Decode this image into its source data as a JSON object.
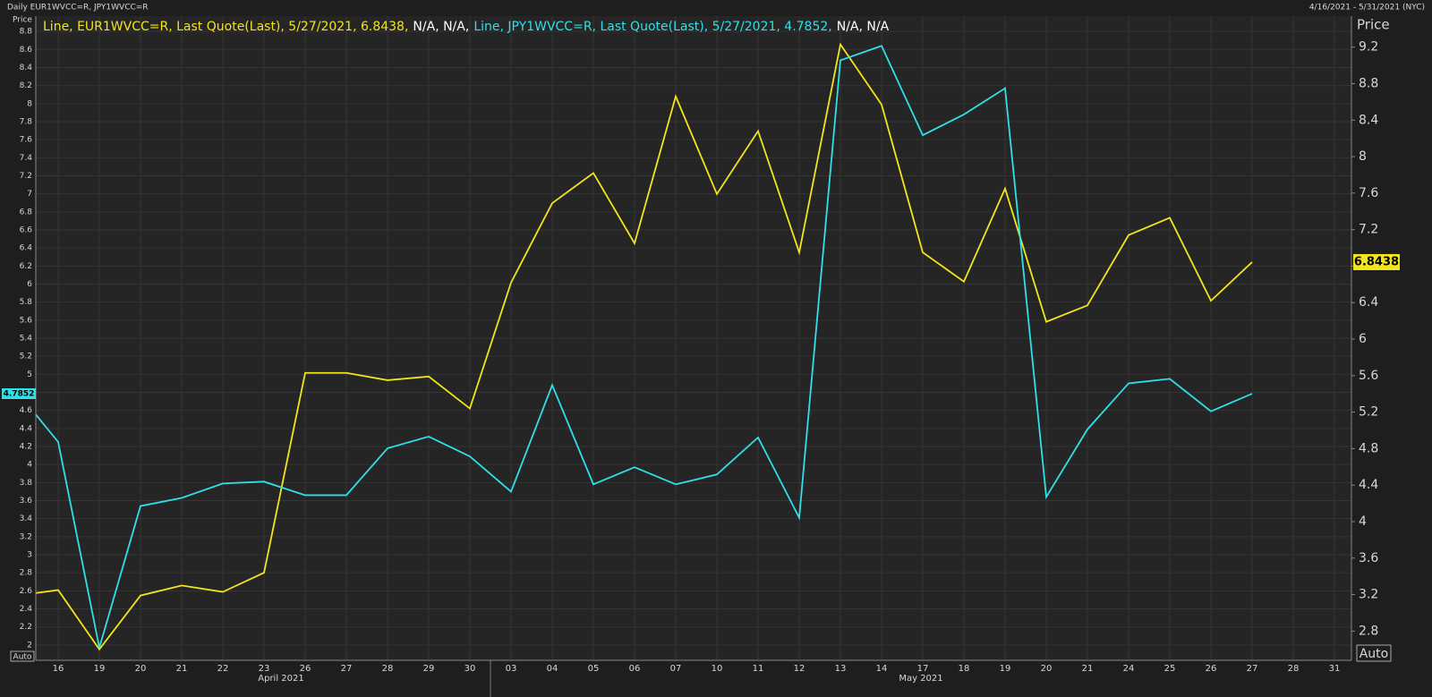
{
  "chart_data": {
    "type": "line",
    "title": "Daily EUR1WVCC=R, JPY1WVCC=R",
    "date_range": "4/16/2021 - 5/31/2021 (NYC)",
    "ylabel": "Price",
    "y2label": "Price",
    "buttons": [
      "Auto",
      "Auto"
    ],
    "legend": [
      {
        "text": "Line, EUR1WVCC=R, Last Quote(Last), 5/27/2021, 6.8438,",
        "color": "#f2e51c"
      },
      {
        "text": "N/A, N/A,",
        "color": "#ffffff"
      },
      {
        "text": "Line, JPY1WVCC=R, Last Quote(Last), 5/27/2021, 4.7852,",
        "color": "#2fe0e8"
      },
      {
        "text": "N/A, N/A",
        "color": "#ffffff"
      }
    ],
    "months": [
      "April 2021",
      "May 2021"
    ],
    "categories": [
      null,
      "16",
      "19",
      "20",
      "21",
      "22",
      "23",
      "26",
      "27",
      "28",
      "29",
      "30",
      "03",
      "04",
      "05",
      "06",
      "07",
      "10",
      "11",
      "12",
      "13",
      "14",
      "17",
      "18",
      "19",
      "20",
      "21",
      "24",
      "25",
      "26",
      "27",
      "28",
      "31"
    ],
    "series": [
      {
        "name": "EUR1WVCC=R",
        "color": "#f2e51c",
        "axis": "y2",
        "values": [
          3.19,
          3.25,
          2.6,
          3.19,
          3.3,
          3.23,
          3.44,
          5.63,
          5.63,
          5.55,
          5.59,
          5.24,
          6.62,
          7.49,
          7.82,
          7.05,
          8.66,
          7.59,
          8.28,
          6.95,
          9.23,
          8.57,
          6.95,
          6.63,
          7.65,
          6.19,
          6.37,
          7.14,
          7.33,
          6.42,
          6.8438,
          null,
          null
        ]
      },
      {
        "name": "JPY1WVCC=R",
        "color": "#2fe0e8",
        "axis": "y",
        "values": [
          4.81,
          4.25,
          1.97,
          3.54,
          3.63,
          3.79,
          3.81,
          3.66,
          3.66,
          4.18,
          4.31,
          4.09,
          3.7,
          4.88,
          3.78,
          3.97,
          3.78,
          3.89,
          4.3,
          3.41,
          8.48,
          8.64,
          7.65,
          7.88,
          8.17,
          3.64,
          4.39,
          4.9,
          4.95,
          4.59,
          4.7852,
          null,
          null
        ]
      }
    ],
    "ylim": [
      1.83,
      8.97
    ],
    "yticks": [
      2,
      2.2,
      2.4,
      2.6,
      2.8,
      3,
      3.2,
      3.4,
      3.6,
      3.8,
      4,
      4.2,
      4.4,
      4.6,
      4.8,
      5,
      5.2,
      5.4,
      5.6,
      5.8,
      6,
      6.2,
      6.4,
      6.6,
      6.8,
      7,
      7.2,
      7.4,
      7.6,
      7.8,
      8,
      8.2,
      8.4,
      8.6,
      8.8
    ],
    "y2lim": [
      2.48,
      9.54
    ],
    "y2ticks": [
      2.8,
      3.2,
      3.6,
      4,
      4.4,
      4.8,
      5.2,
      5.6,
      6,
      6.4,
      6.8,
      7.2,
      7.6,
      8,
      8.4,
      8.8,
      9.2
    ],
    "grid": true
  }
}
